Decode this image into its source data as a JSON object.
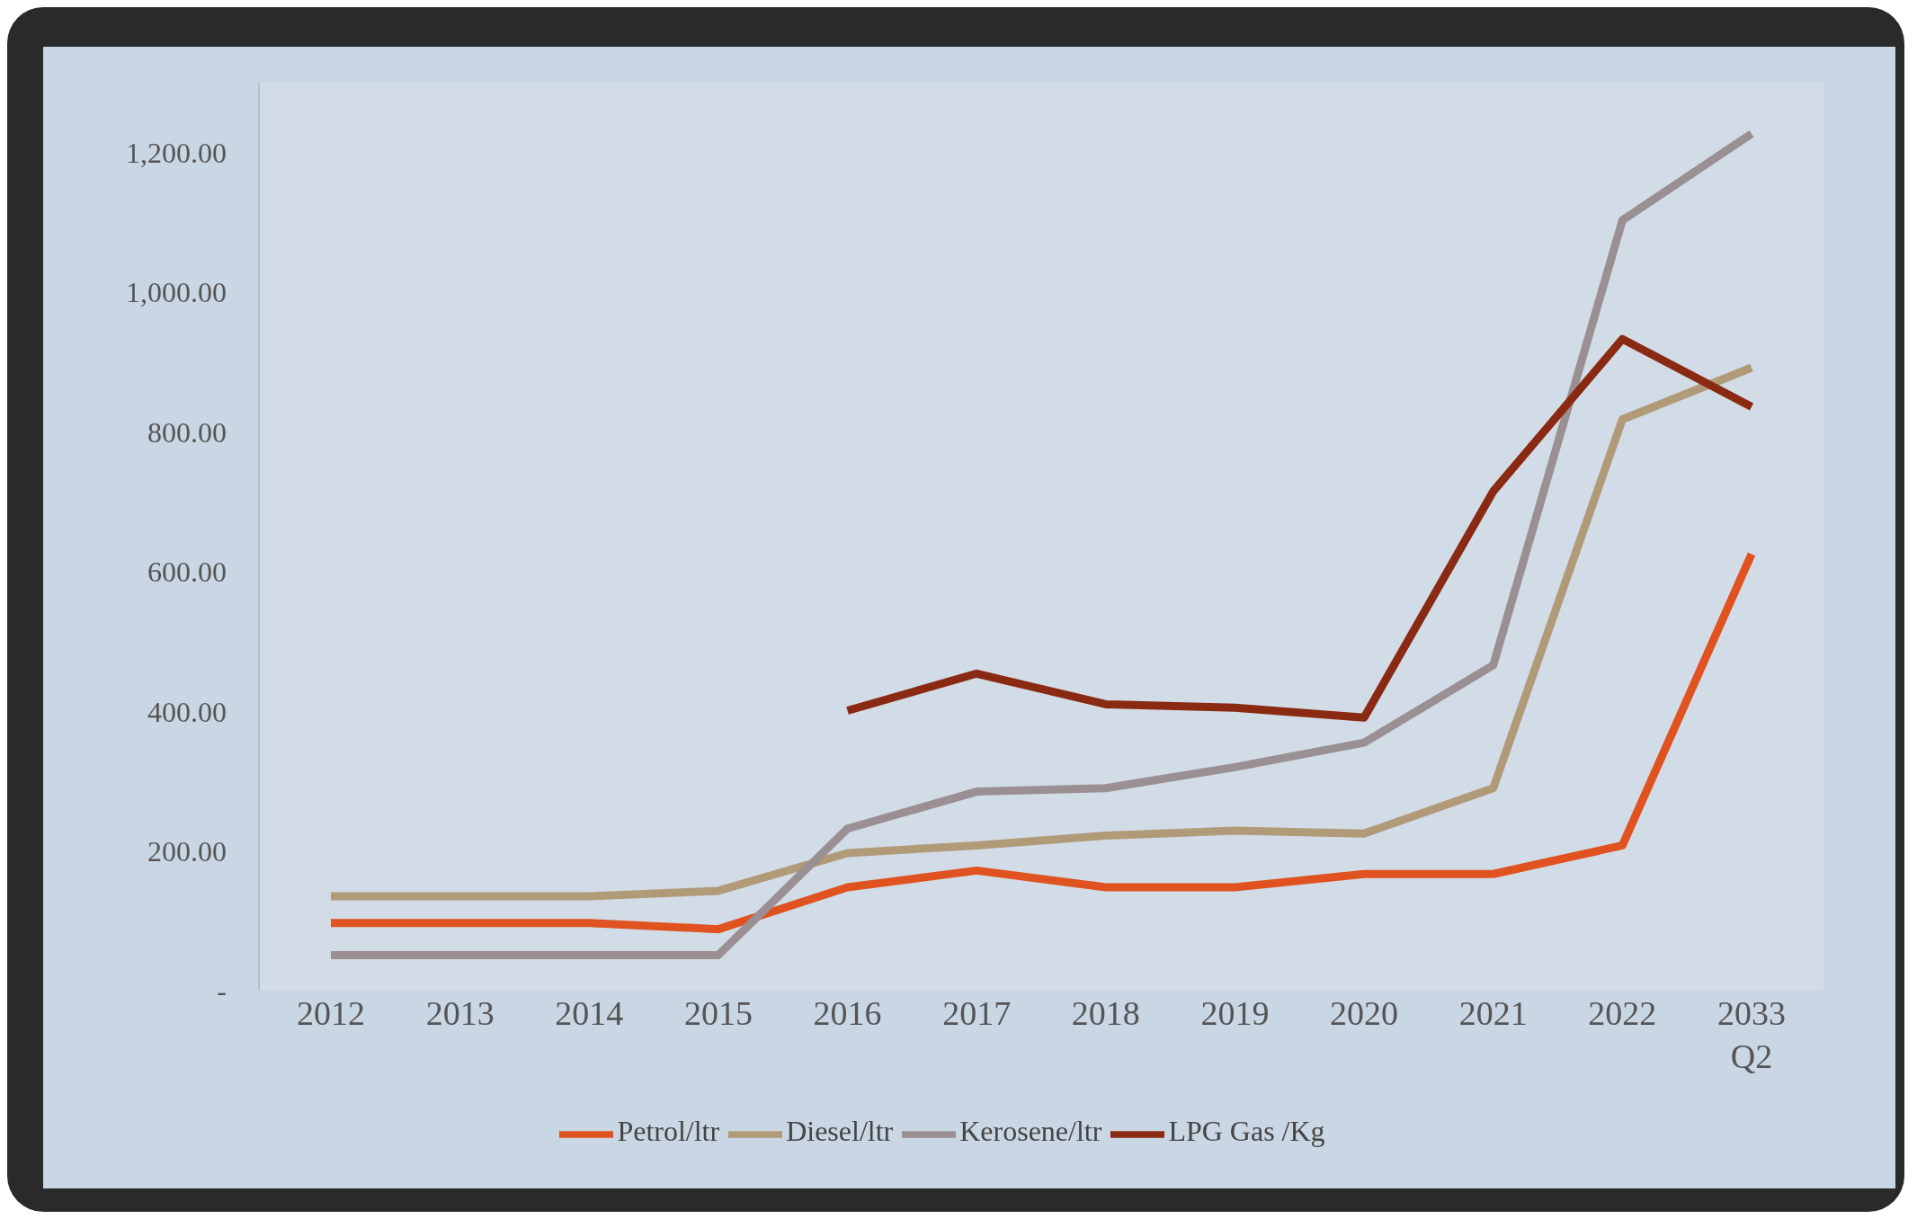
{
  "chart_data": {
    "type": "line",
    "categories": [
      "2012",
      "2013",
      "2014",
      "2015",
      "2016",
      "2017",
      "2018",
      "2019",
      "2020",
      "2021",
      "2022",
      "2033 Q2"
    ],
    "series": [
      {
        "name": "Petrol/ltr",
        "color": "#e0521f",
        "values": [
          97,
          97,
          97,
          88,
          148,
          172,
          148,
          148,
          167,
          167,
          208,
          625
        ]
      },
      {
        "name": "Diesel/ltr",
        "color": "#b09a78",
        "values": [
          135,
          135,
          135,
          143,
          197,
          208,
          222,
          229,
          225,
          290,
          818,
          892
        ]
      },
      {
        "name": "Kerosene/ltr",
        "color": "#9a8f92",
        "values": [
          51,
          51,
          51,
          51,
          232,
          285,
          290,
          320,
          355,
          466,
          1103,
          1227
        ]
      },
      {
        "name": "LPG Gas /Kg",
        "color": "#8b2a12",
        "values": [
          null,
          null,
          null,
          null,
          401,
          454,
          410,
          405,
          391,
          715,
          933,
          836
        ]
      }
    ],
    "ylim": [
      0,
      1300
    ],
    "yticks": [
      {
        "value": 0,
        "label": "-"
      },
      {
        "value": 200,
        "label": "200.00"
      },
      {
        "value": 400,
        "label": "400.00"
      },
      {
        "value": 600,
        "label": "600.00"
      },
      {
        "value": 800,
        "label": "800.00"
      },
      {
        "value": 1000,
        "label": "1,000.00"
      },
      {
        "value": 1200,
        "label": "1,200.00"
      }
    ],
    "grid": false,
    "legend": "bottom",
    "marker": "none",
    "line_style": "solid"
  }
}
